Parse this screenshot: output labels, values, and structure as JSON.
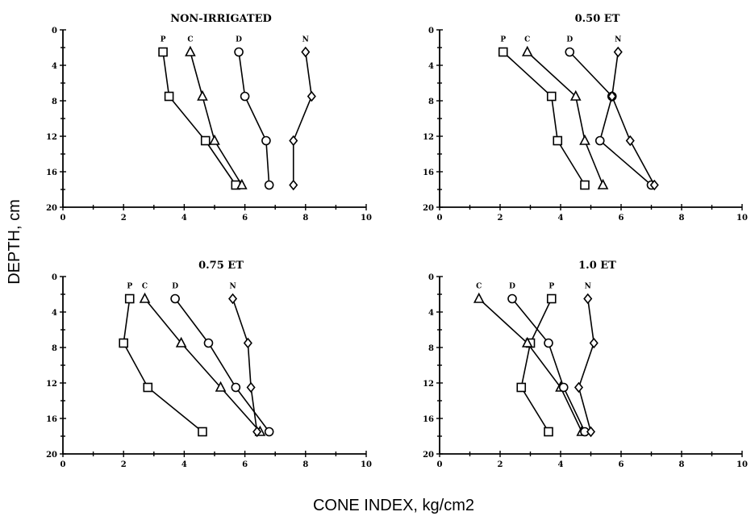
{
  "figure": {
    "ylabel": "DEPTH, cm",
    "xlabel": "CONE INDEX, kg/cm2"
  },
  "chart_data": [
    {
      "type": "line",
      "title": "NON-IRRIGATED",
      "xlim": [
        0,
        10
      ],
      "ylim": [
        0,
        20
      ],
      "y_inverted": true,
      "xticks": [
        "0",
        "2",
        "4",
        "6",
        "8",
        "10"
      ],
      "yticks": [
        "0",
        "4",
        "8",
        "12",
        "16",
        "20"
      ],
      "series": [
        {
          "name": "P",
          "marker": "square",
          "x": [
            3.3,
            3.5,
            4.7,
            5.7
          ],
          "y": [
            2.5,
            7.5,
            12.5,
            17.5
          ]
        },
        {
          "name": "C",
          "marker": "triangle",
          "x": [
            4.2,
            4.6,
            5.0,
            5.9
          ],
          "y": [
            2.5,
            7.5,
            12.5,
            17.5
          ]
        },
        {
          "name": "D",
          "marker": "circle",
          "x": [
            5.8,
            6.0,
            6.7,
            6.8
          ],
          "y": [
            2.5,
            7.5,
            12.5,
            17.5
          ]
        },
        {
          "name": "N",
          "marker": "diamond",
          "x": [
            8.0,
            8.2,
            7.6,
            7.6
          ],
          "y": [
            2.5,
            7.5,
            12.5,
            17.5
          ]
        }
      ]
    },
    {
      "type": "line",
      "title": "0.50 ET",
      "xlim": [
        0,
        10
      ],
      "ylim": [
        0,
        20
      ],
      "y_inverted": true,
      "xticks": [
        "0",
        "2",
        "4",
        "6",
        "8",
        "10"
      ],
      "yticks": [
        "0",
        "4",
        "8",
        "12",
        "16",
        "20"
      ],
      "series": [
        {
          "name": "P",
          "marker": "square",
          "x": [
            2.1,
            3.7,
            3.9,
            4.8
          ],
          "y": [
            2.5,
            7.5,
            12.5,
            17.5
          ]
        },
        {
          "name": "C",
          "marker": "triangle",
          "x": [
            2.9,
            4.5,
            4.8,
            5.4
          ],
          "y": [
            2.5,
            7.5,
            12.5,
            17.5
          ]
        },
        {
          "name": "D",
          "marker": "circle",
          "x": [
            4.3,
            5.7,
            5.3,
            7.0
          ],
          "y": [
            2.5,
            7.5,
            12.5,
            17.5
          ]
        },
        {
          "name": "N",
          "marker": "diamond",
          "x": [
            5.9,
            5.7,
            6.3,
            7.1
          ],
          "y": [
            2.5,
            7.5,
            12.5,
            17.5
          ]
        }
      ]
    },
    {
      "type": "line",
      "title": "0.75 ET",
      "xlim": [
        0,
        10
      ],
      "ylim": [
        0,
        20
      ],
      "y_inverted": true,
      "xticks": [
        "0",
        "2",
        "4",
        "6",
        "8",
        "10"
      ],
      "yticks": [
        "0",
        "4",
        "8",
        "12",
        "16",
        "20"
      ],
      "series": [
        {
          "name": "P",
          "marker": "square",
          "x": [
            2.2,
            2.0,
            2.8,
            4.6
          ],
          "y": [
            2.5,
            7.5,
            12.5,
            17.5
          ]
        },
        {
          "name": "C",
          "marker": "triangle",
          "x": [
            2.7,
            3.9,
            5.2,
            6.5
          ],
          "y": [
            2.5,
            7.5,
            12.5,
            17.5
          ]
        },
        {
          "name": "D",
          "marker": "circle",
          "x": [
            3.7,
            4.8,
            5.7,
            6.8
          ],
          "y": [
            2.5,
            7.5,
            12.5,
            17.5
          ]
        },
        {
          "name": "N",
          "marker": "diamond",
          "x": [
            5.6,
            6.1,
            6.2,
            6.4
          ],
          "y": [
            2.5,
            7.5,
            12.5,
            17.5
          ]
        }
      ]
    },
    {
      "type": "line",
      "title": "1.0 ET",
      "xlim": [
        0,
        10
      ],
      "ylim": [
        0,
        20
      ],
      "y_inverted": true,
      "xticks": [
        "0",
        "2",
        "4",
        "6",
        "8",
        "10"
      ],
      "yticks": [
        "0",
        "4",
        "8",
        "12",
        "16",
        "20"
      ],
      "series": [
        {
          "name": "P",
          "marker": "square",
          "x": [
            3.7,
            3.0,
            2.7,
            3.6
          ],
          "y": [
            2.5,
            7.5,
            12.5,
            17.5
          ]
        },
        {
          "name": "C",
          "marker": "triangle",
          "x": [
            1.3,
            2.9,
            4.0,
            4.7
          ],
          "y": [
            2.5,
            7.5,
            12.5,
            17.5
          ]
        },
        {
          "name": "D",
          "marker": "circle",
          "x": [
            2.4,
            3.6,
            4.1,
            4.8
          ],
          "y": [
            2.5,
            7.5,
            12.5,
            17.5
          ]
        },
        {
          "name": "N",
          "marker": "diamond",
          "x": [
            4.9,
            5.1,
            4.6,
            5.0
          ],
          "y": [
            2.5,
            7.5,
            12.5,
            17.5
          ]
        }
      ]
    }
  ]
}
